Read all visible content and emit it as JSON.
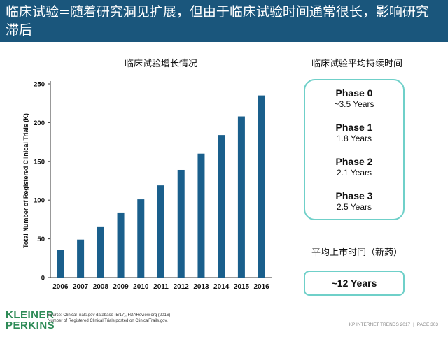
{
  "slide": {
    "title": "临床试验=随着研究洞见扩展，但由于临床试验时间通常很长，影响研究滞后"
  },
  "chart_data": {
    "type": "bar",
    "title": "临床试验增长情况",
    "ylabel": "Total Number of Registered Clinical Trials (K)",
    "xlabel": "",
    "categories": [
      "2006",
      "2007",
      "2008",
      "2009",
      "2010",
      "2011",
      "2012",
      "2013",
      "2014",
      "2015",
      "2016"
    ],
    "values": [
      36,
      49,
      66,
      84,
      101,
      119,
      139,
      160,
      184,
      208,
      235
    ],
    "ylim": [
      0,
      250
    ],
    "yticks": [
      0,
      50,
      100,
      150,
      200,
      250
    ],
    "bar_color": "#1a5f8c",
    "grid": false
  },
  "panel": {
    "title": "临床试验平均持续时间",
    "phases": [
      {
        "name": "Phase 0",
        "duration": "~3.5 Years"
      },
      {
        "name": "Phase 1",
        "duration": "1.8 Years"
      },
      {
        "name": "Phase 2",
        "duration": "2.1 Years"
      },
      {
        "name": "Phase 3",
        "duration": "2.5 Years"
      }
    ],
    "border_color": "#6fd0c9"
  },
  "market": {
    "title": "平均上市时间（新药）",
    "value": "~12 Years"
  },
  "logo": {
    "line1": "KLEINER",
    "line2": "PERKINS",
    "color": "#2e8b57"
  },
  "source": {
    "line1": "Source: ClinicalTrials.gov database (5/17), FDAReview.org (2016)",
    "line2": "Number of Registered Clinical Trials posted on ClinicalTrails.gov."
  },
  "footer": {
    "left": "KP INTERNET TRENDS 2017",
    "separator": "|",
    "right": "PAGE 303"
  },
  "colors": {
    "title_bar": "#1a567c",
    "accent": "#6fd0c9"
  }
}
